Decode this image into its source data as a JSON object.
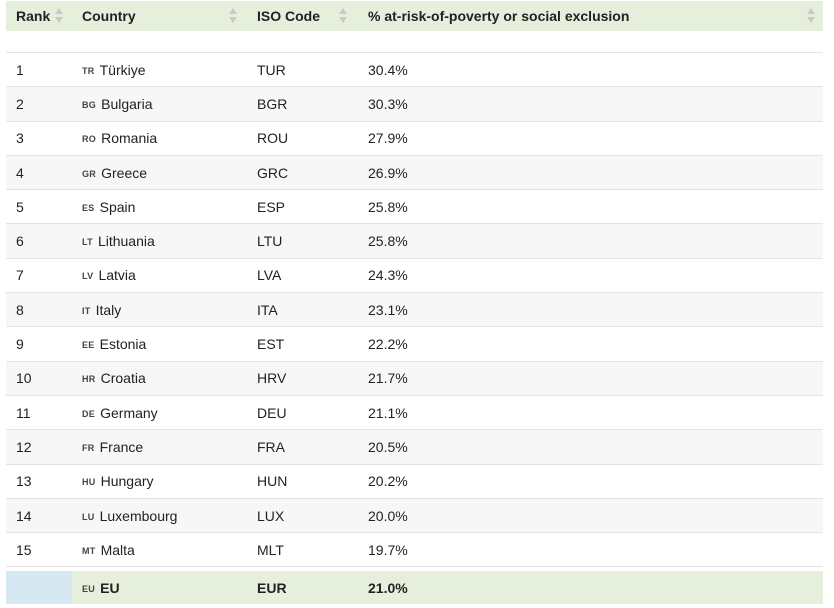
{
  "columns": {
    "rank": "Rank",
    "country": "Country",
    "iso": "ISO Code",
    "pct": "% at-risk-of-poverty or social exclusion"
  },
  "rows": [
    {
      "rank": "1",
      "flag": "TR",
      "country": "Türkiye",
      "iso": "TUR",
      "pct": "30.4%"
    },
    {
      "rank": "2",
      "flag": "BG",
      "country": "Bulgaria",
      "iso": "BGR",
      "pct": "30.3%"
    },
    {
      "rank": "3",
      "flag": "RO",
      "country": "Romania",
      "iso": "ROU",
      "pct": "27.9%"
    },
    {
      "rank": "4",
      "flag": "GR",
      "country": "Greece",
      "iso": "GRC",
      "pct": "26.9%"
    },
    {
      "rank": "5",
      "flag": "ES",
      "country": "Spain",
      "iso": "ESP",
      "pct": "25.8%"
    },
    {
      "rank": "6",
      "flag": "LT",
      "country": "Lithuania",
      "iso": "LTU",
      "pct": "25.8%"
    },
    {
      "rank": "7",
      "flag": "LV",
      "country": "Latvia",
      "iso": "LVA",
      "pct": "24.3%"
    },
    {
      "rank": "8",
      "flag": "IT",
      "country": "Italy",
      "iso": "ITA",
      "pct": "23.1%"
    },
    {
      "rank": "9",
      "flag": "EE",
      "country": "Estonia",
      "iso": "EST",
      "pct": "22.2%"
    },
    {
      "rank": "10",
      "flag": "HR",
      "country": "Croatia",
      "iso": "HRV",
      "pct": "21.7%"
    },
    {
      "rank": "11",
      "flag": "DE",
      "country": "Germany",
      "iso": "DEU",
      "pct": "21.1%"
    },
    {
      "rank": "12",
      "flag": "FR",
      "country": "France",
      "iso": "FRA",
      "pct": "20.5%"
    },
    {
      "rank": "13",
      "flag": "HU",
      "country": "Hungary",
      "iso": "HUN",
      "pct": "20.2%"
    },
    {
      "rank": "14",
      "flag": "LU",
      "country": "Luxembourg",
      "iso": "LUX",
      "pct": "20.0%"
    },
    {
      "rank": "15",
      "flag": "MT",
      "country": "Malta",
      "iso": "MLT",
      "pct": "19.7%"
    }
  ],
  "footer": {
    "flag": "EU",
    "country": "EU",
    "iso": "EUR",
    "pct": "21.0%"
  },
  "colors": {
    "header_bg": "#e6efdc",
    "footer_rank_bg": "#d6e8f2",
    "alt_row_bg": "#f7f7f7"
  },
  "icons": {
    "sort": "sort-arrows-icon",
    "flag": "flag-icon"
  }
}
